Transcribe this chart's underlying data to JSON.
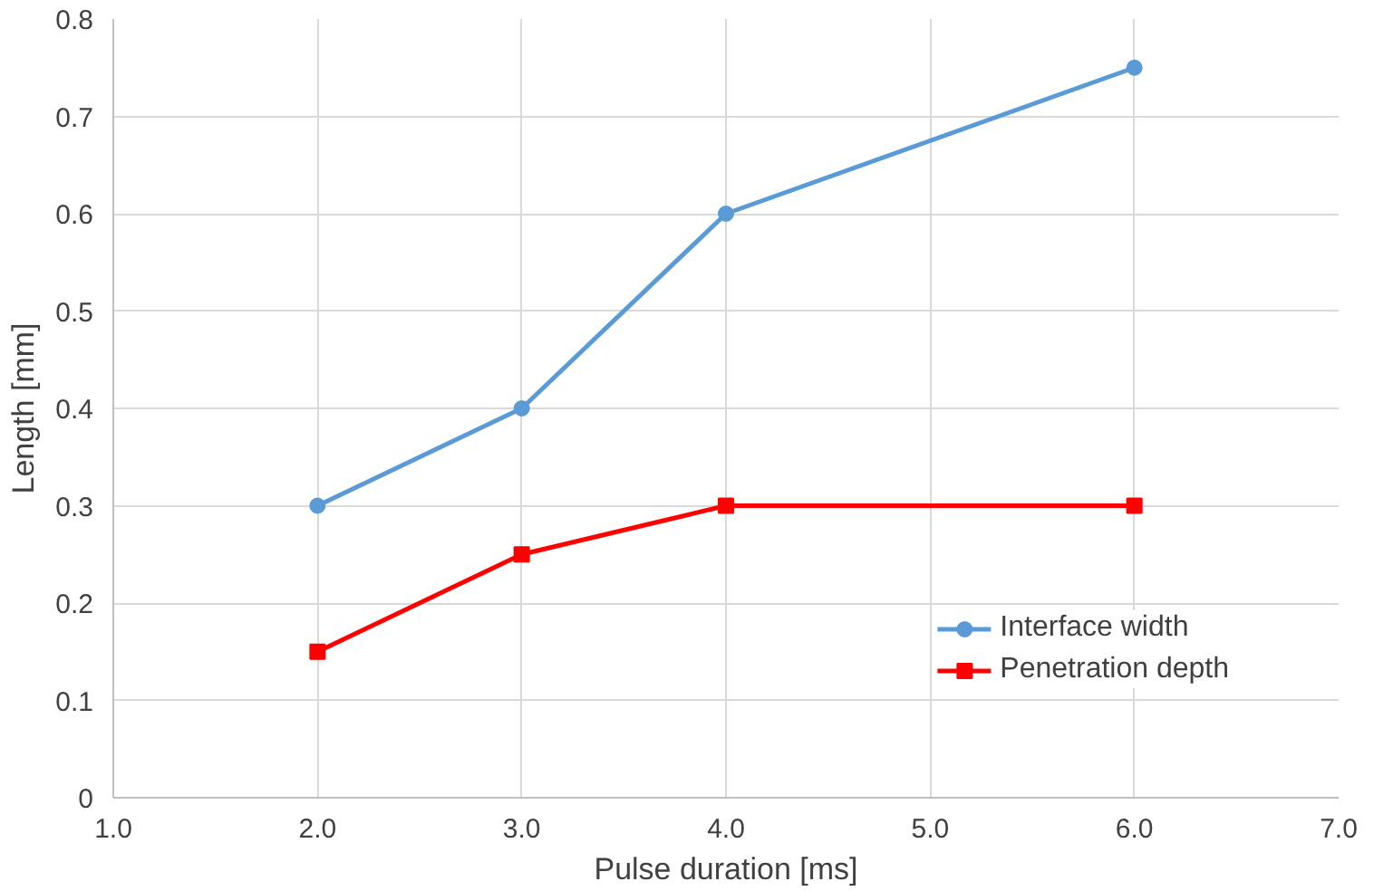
{
  "chart_data": {
    "type": "line",
    "xlabel": "Pulse duration [ms]",
    "ylabel": "Length [mm]",
    "x": [
      2,
      3,
      4,
      6
    ],
    "series": [
      {
        "name": "Interface width",
        "color": "#5b9bd5",
        "marker": "circle",
        "values": [
          0.3,
          0.4,
          0.6,
          0.75
        ]
      },
      {
        "name": "Penetration depth",
        "color": "#ff0000",
        "marker": "square",
        "values": [
          0.15,
          0.25,
          0.3,
          0.3
        ]
      }
    ],
    "xlim": [
      1,
      7
    ],
    "xticks": [
      {
        "value": 1,
        "label": "1.0"
      },
      {
        "value": 2,
        "label": "2.0"
      },
      {
        "value": 3,
        "label": "3.0"
      },
      {
        "value": 4,
        "label": "4.0"
      },
      {
        "value": 5,
        "label": "5.0"
      },
      {
        "value": 6,
        "label": "6.0"
      },
      {
        "value": 7,
        "label": "7.0"
      }
    ],
    "ylim": [
      0,
      0.8
    ],
    "yticks": [
      0,
      0.1,
      0.2,
      0.3,
      0.4,
      0.5,
      0.6,
      0.7,
      0.8
    ],
    "grid": true,
    "legend": "bottom right",
    "line_style": "solid"
  }
}
